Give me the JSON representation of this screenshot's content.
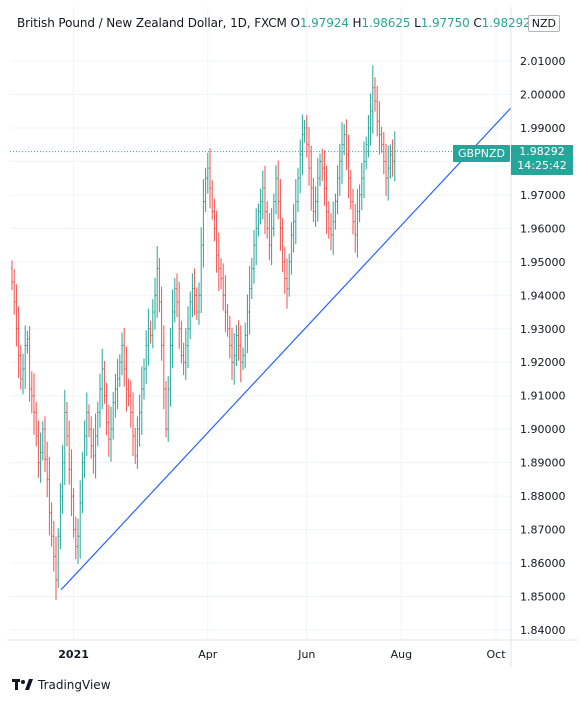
{
  "header": {
    "title": "British Pound / New Zealand Dollar, 1D, FXCM",
    "open_label": "O",
    "open": "1.97924",
    "high_label": "H",
    "high": "1.98625",
    "low_label": "L",
    "low": "1.97750",
    "close_label": "C",
    "close": "1.98292..."
  },
  "currency_badge": "NZD",
  "price_tag": {
    "symbol": "GBPNZD",
    "price": "1.98292",
    "countdown": "14:25:42"
  },
  "branding": {
    "name": "TradingView"
  },
  "colors": {
    "up": "#26a69a",
    "down": "#ef5350",
    "trendline": "#2962ff",
    "grid": "#f0f3fa"
  },
  "chart_data": {
    "type": "ohlc-bar",
    "y_ticks": [
      "1.84000",
      "1.85000",
      "1.86000",
      "1.87000",
      "1.88000",
      "1.89000",
      "1.90000",
      "1.91000",
      "1.92000",
      "1.93000",
      "1.94000",
      "1.95000",
      "1.96000",
      "1.97000",
      "1.98000",
      "1.99000",
      "2.00000",
      "2.01000"
    ],
    "ylim": [
      1.835,
      2.018
    ],
    "x_ticks": [
      {
        "label": "2021",
        "bold": true,
        "bar": 28
      },
      {
        "label": "Apr",
        "bold": false,
        "bar": 89
      },
      {
        "label": "Jun",
        "bold": false,
        "bar": 134
      },
      {
        "label": "Aug",
        "bold": false,
        "bar": 177
      },
      {
        "label": "Oct",
        "bold": false,
        "bar": 220
      }
    ],
    "closes": [
      1.944,
      1.938,
      1.93,
      1.922,
      1.915,
      1.918,
      1.925,
      1.927,
      1.912,
      1.91,
      1.905,
      1.898,
      1.89,
      1.893,
      1.9,
      1.891,
      1.885,
      1.875,
      1.868,
      1.862,
      1.855,
      1.868,
      1.88,
      1.89,
      1.905,
      1.898,
      1.888,
      1.88,
      1.87,
      1.865,
      1.868,
      1.878,
      1.89,
      1.898,
      1.905,
      1.9,
      1.895,
      1.892,
      1.898,
      1.905,
      1.912,
      1.918,
      1.91,
      1.902,
      1.897,
      1.9,
      1.908,
      1.912,
      1.915,
      1.92,
      1.925,
      1.918,
      1.912,
      1.91,
      1.905,
      1.898,
      1.892,
      1.9,
      1.905,
      1.912,
      1.918,
      1.925,
      1.93,
      1.928,
      1.935,
      1.94,
      1.948,
      1.938,
      1.925,
      1.912,
      1.9,
      1.912,
      1.925,
      1.935,
      1.942,
      1.938,
      1.93,
      1.922,
      1.92,
      1.925,
      1.93,
      1.938,
      1.942,
      1.94,
      1.935,
      1.94,
      1.955,
      1.968,
      1.975,
      1.978,
      1.972,
      1.965,
      1.96,
      1.952,
      1.948,
      1.945,
      1.94,
      1.935,
      1.93,
      1.925,
      1.92,
      1.922,
      1.928,
      1.925,
      1.92,
      1.922,
      1.928,
      1.935,
      1.942,
      1.948,
      1.955,
      1.96,
      1.965,
      1.968,
      1.972,
      1.965,
      1.96,
      1.955,
      1.96,
      1.968,
      1.975,
      1.968,
      1.96,
      1.95,
      1.945,
      1.942,
      1.95,
      1.958,
      1.962,
      1.968,
      1.975,
      1.982,
      1.988,
      1.99,
      1.985,
      1.978,
      1.972,
      1.965,
      1.968,
      1.975,
      1.98,
      1.978,
      1.972,
      1.965,
      1.96,
      1.958,
      1.962,
      1.968,
      1.975,
      1.98,
      1.985,
      1.988,
      1.982,
      1.975,
      1.968,
      1.962,
      1.958,
      1.965,
      1.97,
      1.975,
      1.98,
      1.985,
      1.99,
      1.995,
      2.002,
      1.998,
      1.992,
      1.988,
      1.985,
      1.98,
      1.975,
      1.978,
      1.982,
      1.98,
      1.983
    ]
  }
}
